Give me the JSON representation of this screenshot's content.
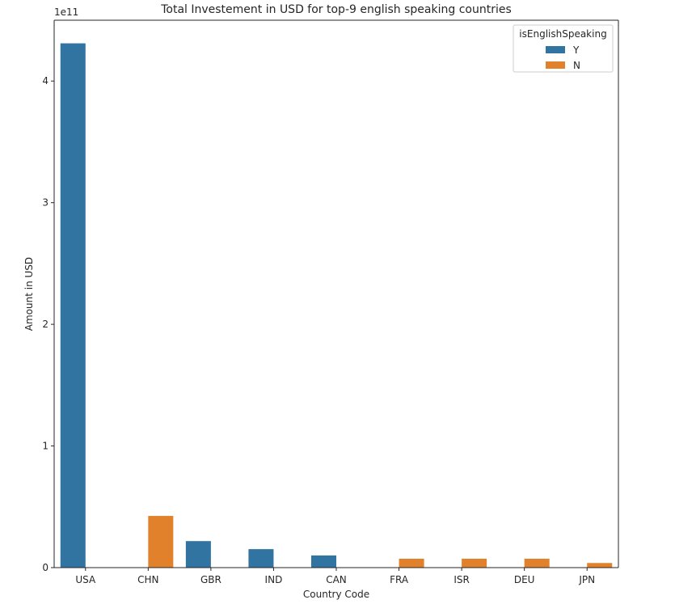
{
  "chart_data": {
    "type": "bar",
    "title": "Total Investement in USD for top-9 english speaking countries",
    "xlabel": "Country Code",
    "ylabel": "Amount in USD",
    "offset_text": "1e11",
    "categories": [
      "USA",
      "CHN",
      "GBR",
      "IND",
      "CAN",
      "FRA",
      "ISR",
      "DEU",
      "JPN"
    ],
    "series": [
      {
        "name": "Y",
        "color": "#3274a1",
        "values": [
          431000000000.0,
          null,
          21800000000.0,
          15200000000.0,
          10000000000.0,
          null,
          null,
          null,
          null
        ]
      },
      {
        "name": "N",
        "color": "#e1812c",
        "values": [
          null,
          42500000000.0,
          null,
          null,
          null,
          7300000000.0,
          7300000000.0,
          7300000000.0,
          3800000000.0
        ]
      }
    ],
    "ylim": [
      0,
      450000000000.0
    ],
    "yticks": [
      0,
      100000000000.0,
      200000000000.0,
      300000000000.0,
      400000000000.0
    ],
    "ytick_labels": [
      "0",
      "1",
      "2",
      "3",
      "4"
    ],
    "legend": {
      "title": "isEnglishSpeaking",
      "position": "top-right"
    },
    "grid": false
  }
}
